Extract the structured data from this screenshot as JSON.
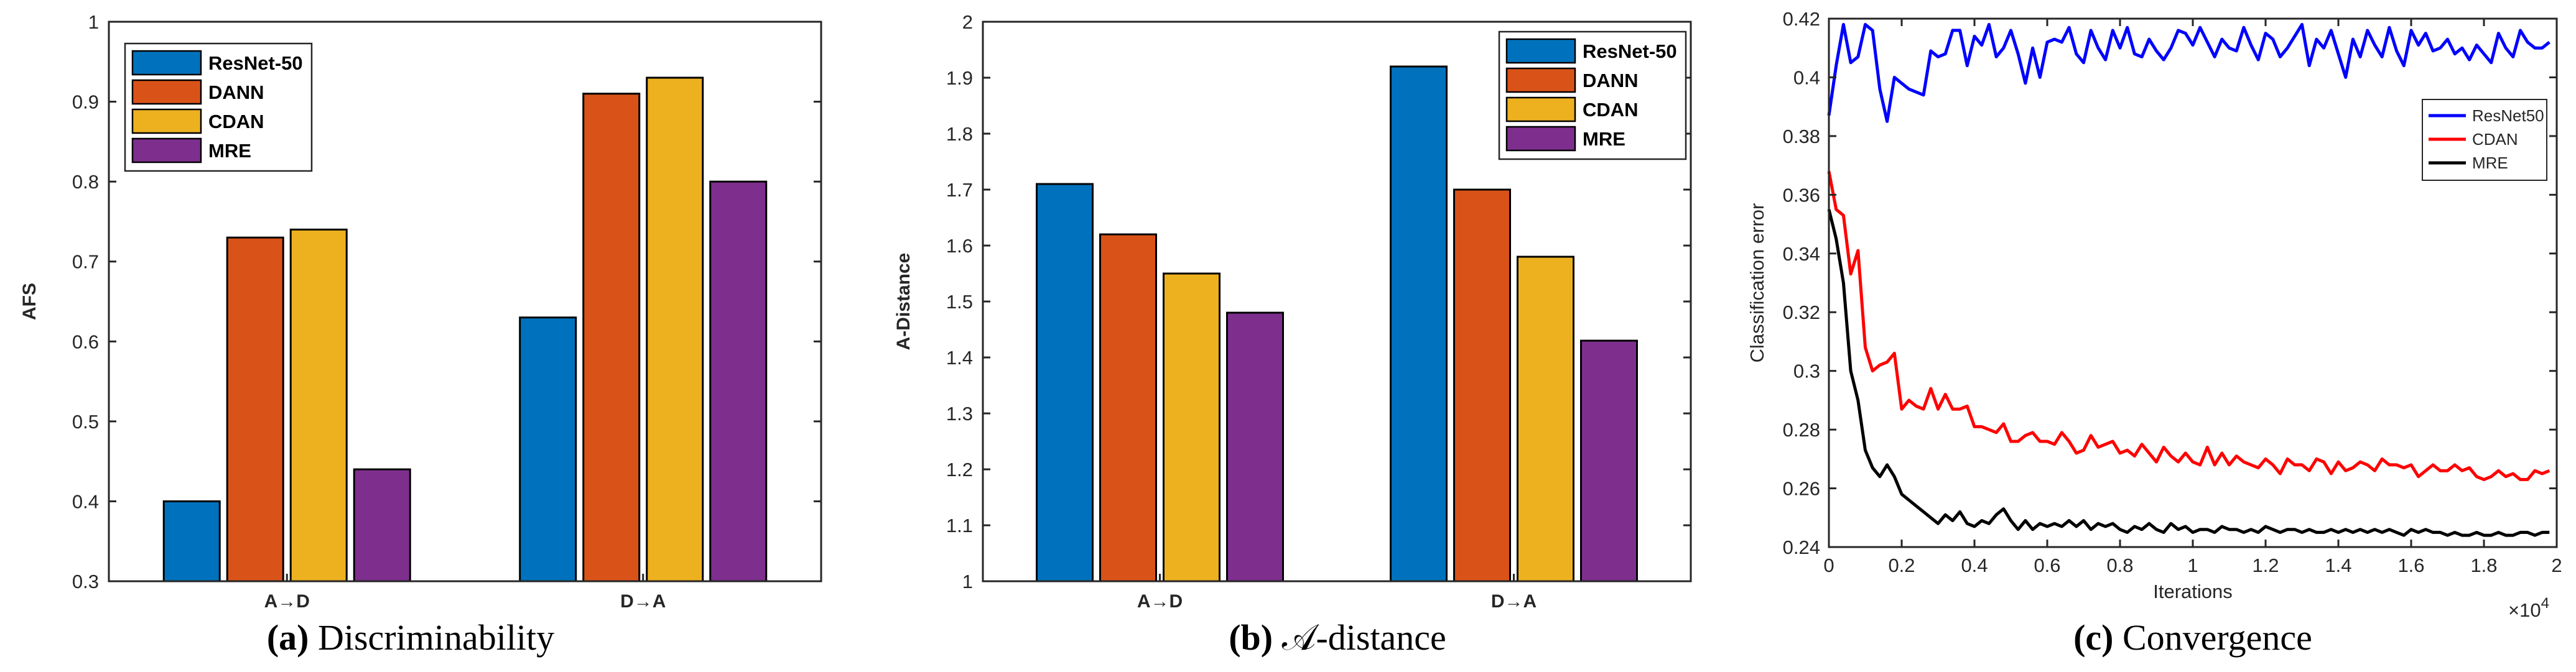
{
  "chart_data": [
    {
      "type": "bar",
      "caption_label": "(a)",
      "caption_text": "Discriminability",
      "categories": [
        "A→D",
        "D→A"
      ],
      "ylabel": "AFS",
      "xlabel": "",
      "ylim": [
        0.3,
        1.0
      ],
      "yticks": [
        "0.3",
        "0.4",
        "0.5",
        "0.6",
        "0.7",
        "0.8",
        "0.9",
        "1"
      ],
      "series": [
        {
          "name": "ResNet-50",
          "color": "#0072BD",
          "values": [
            0.4,
            0.63
          ]
        },
        {
          "name": "DANN",
          "color": "#D95319",
          "values": [
            0.73,
            0.91
          ]
        },
        {
          "name": "CDAN",
          "color": "#EDB120",
          "values": [
            0.74,
            0.93
          ]
        },
        {
          "name": "MRE",
          "color": "#7E2F8E",
          "values": [
            0.44,
            0.8
          ]
        }
      ],
      "legend_position": "top-left",
      "grid": false
    },
    {
      "type": "bar",
      "caption_label": "(b)",
      "caption_text": "𝒜-distance",
      "categories": [
        "A→D",
        "D→A"
      ],
      "ylabel": "A-Distance",
      "xlabel": "",
      "ylim": [
        1.0,
        2.0
      ],
      "yticks": [
        "1",
        "1.1",
        "1.2",
        "1.3",
        "1.4",
        "1.5",
        "1.6",
        "1.7",
        "1.8",
        "1.9",
        "2"
      ],
      "series": [
        {
          "name": "ResNet-50",
          "color": "#0072BD",
          "values": [
            1.71,
            1.92
          ]
        },
        {
          "name": "DANN",
          "color": "#D95319",
          "values": [
            1.62,
            1.7
          ]
        },
        {
          "name": "CDAN",
          "color": "#EDB120",
          "values": [
            1.55,
            1.58
          ]
        },
        {
          "name": "MRE",
          "color": "#7E2F8E",
          "values": [
            1.48,
            1.43
          ]
        }
      ],
      "legend_position": "top-right",
      "grid": false
    },
    {
      "type": "line",
      "caption_label": "(c)",
      "caption_text": "Convergence",
      "xlabel": "Iterations",
      "ylabel": "Classification error",
      "x_multiplier": "×10",
      "x_multiplier_exp": "4",
      "xlim": [
        0,
        2.0
      ],
      "ylim": [
        0.24,
        0.42
      ],
      "xticks": [
        "0",
        "0.2",
        "0.4",
        "0.6",
        "0.8",
        "1",
        "1.2",
        "1.4",
        "1.6",
        "1.8",
        "2"
      ],
      "yticks": [
        "0.24",
        "0.26",
        "0.28",
        "0.3",
        "0.32",
        "0.34",
        "0.36",
        "0.38",
        "0.4",
        "0.42"
      ],
      "legend_position": "top-right",
      "grid": false,
      "series": [
        {
          "name": "ResNet50",
          "color": "#0000FF",
          "x": [
            0.0,
            0.02,
            0.04,
            0.06,
            0.08,
            0.1,
            0.12,
            0.14,
            0.16,
            0.18,
            0.2,
            0.22,
            0.24,
            0.26,
            0.28,
            0.3,
            0.32,
            0.34,
            0.36,
            0.38,
            0.4,
            0.42,
            0.44,
            0.46,
            0.48,
            0.5,
            0.52,
            0.54,
            0.56,
            0.58,
            0.6,
            0.62,
            0.64,
            0.66,
            0.68,
            0.7,
            0.72,
            0.74,
            0.76,
            0.78,
            0.8,
            0.82,
            0.84,
            0.86,
            0.88,
            0.9,
            0.92,
            0.94,
            0.96,
            0.98,
            1.0,
            1.02,
            1.04,
            1.06,
            1.08,
            1.1,
            1.12,
            1.14,
            1.16,
            1.18,
            1.2,
            1.22,
            1.24,
            1.26,
            1.28,
            1.3,
            1.32,
            1.34,
            1.36,
            1.38,
            1.4,
            1.42,
            1.44,
            1.46,
            1.48,
            1.5,
            1.52,
            1.54,
            1.56,
            1.58,
            1.6,
            1.62,
            1.64,
            1.66,
            1.68,
            1.7,
            1.72,
            1.74,
            1.76,
            1.78,
            1.8,
            1.82,
            1.84,
            1.86,
            1.88,
            1.9,
            1.92,
            1.94,
            1.96,
            1.98
          ],
          "y": [
            0.387,
            0.404,
            0.418,
            0.405,
            0.407,
            0.418,
            0.416,
            0.396,
            0.385,
            0.4,
            0.398,
            0.396,
            0.395,
            0.394,
            0.409,
            0.407,
            0.408,
            0.416,
            0.416,
            0.404,
            0.414,
            0.411,
            0.418,
            0.407,
            0.41,
            0.416,
            0.408,
            0.398,
            0.41,
            0.4,
            0.412,
            0.413,
            0.412,
            0.417,
            0.408,
            0.405,
            0.416,
            0.41,
            0.406,
            0.416,
            0.41,
            0.417,
            0.408,
            0.407,
            0.413,
            0.409,
            0.406,
            0.41,
            0.416,
            0.415,
            0.411,
            0.417,
            0.412,
            0.407,
            0.413,
            0.41,
            0.409,
            0.417,
            0.411,
            0.406,
            0.415,
            0.413,
            0.407,
            0.41,
            0.414,
            0.418,
            0.404,
            0.413,
            0.41,
            0.416,
            0.408,
            0.4,
            0.413,
            0.407,
            0.416,
            0.411,
            0.407,
            0.417,
            0.409,
            0.404,
            0.416,
            0.411,
            0.415,
            0.409,
            0.41,
            0.413,
            0.408,
            0.41,
            0.406,
            0.411,
            0.408,
            0.405,
            0.415,
            0.41,
            0.407,
            0.416,
            0.412,
            0.41,
            0.41,
            0.412
          ]
        },
        {
          "name": "CDAN",
          "color": "#FF0000",
          "x": [
            0.0,
            0.02,
            0.04,
            0.06,
            0.08,
            0.1,
            0.12,
            0.14,
            0.16,
            0.18,
            0.2,
            0.22,
            0.24,
            0.26,
            0.28,
            0.3,
            0.32,
            0.34,
            0.36,
            0.38,
            0.4,
            0.42,
            0.44,
            0.46,
            0.48,
            0.5,
            0.52,
            0.54,
            0.56,
            0.58,
            0.6,
            0.62,
            0.64,
            0.66,
            0.68,
            0.7,
            0.72,
            0.74,
            0.76,
            0.78,
            0.8,
            0.82,
            0.84,
            0.86,
            0.88,
            0.9,
            0.92,
            0.94,
            0.96,
            0.98,
            1.0,
            1.02,
            1.04,
            1.06,
            1.08,
            1.1,
            1.12,
            1.14,
            1.16,
            1.18,
            1.2,
            1.22,
            1.24,
            1.26,
            1.28,
            1.3,
            1.32,
            1.34,
            1.36,
            1.38,
            1.4,
            1.42,
            1.44,
            1.46,
            1.48,
            1.5,
            1.52,
            1.54,
            1.56,
            1.58,
            1.6,
            1.62,
            1.64,
            1.66,
            1.68,
            1.7,
            1.72,
            1.74,
            1.76,
            1.78,
            1.8,
            1.82,
            1.84,
            1.86,
            1.88,
            1.9,
            1.92,
            1.94,
            1.96,
            1.98
          ],
          "y": [
            0.368,
            0.355,
            0.353,
            0.333,
            0.341,
            0.308,
            0.3,
            0.302,
            0.303,
            0.306,
            0.287,
            0.29,
            0.288,
            0.287,
            0.294,
            0.287,
            0.292,
            0.287,
            0.287,
            0.288,
            0.281,
            0.281,
            0.28,
            0.279,
            0.282,
            0.276,
            0.276,
            0.278,
            0.279,
            0.276,
            0.276,
            0.275,
            0.279,
            0.276,
            0.272,
            0.273,
            0.278,
            0.274,
            0.275,
            0.276,
            0.272,
            0.273,
            0.271,
            0.275,
            0.272,
            0.269,
            0.274,
            0.271,
            0.269,
            0.272,
            0.269,
            0.268,
            0.274,
            0.268,
            0.272,
            0.268,
            0.271,
            0.269,
            0.268,
            0.267,
            0.27,
            0.268,
            0.265,
            0.27,
            0.268,
            0.268,
            0.266,
            0.27,
            0.269,
            0.265,
            0.269,
            0.266,
            0.267,
            0.269,
            0.268,
            0.266,
            0.27,
            0.268,
            0.268,
            0.267,
            0.268,
            0.264,
            0.266,
            0.268,
            0.266,
            0.266,
            0.268,
            0.266,
            0.267,
            0.264,
            0.263,
            0.264,
            0.266,
            0.264,
            0.265,
            0.263,
            0.263,
            0.266,
            0.265,
            0.266
          ]
        },
        {
          "name": "MRE",
          "color": "#000000",
          "x": [
            0.0,
            0.02,
            0.04,
            0.06,
            0.08,
            0.1,
            0.12,
            0.14,
            0.16,
            0.18,
            0.2,
            0.22,
            0.24,
            0.26,
            0.28,
            0.3,
            0.32,
            0.34,
            0.36,
            0.38,
            0.4,
            0.42,
            0.44,
            0.46,
            0.48,
            0.5,
            0.52,
            0.54,
            0.56,
            0.58,
            0.6,
            0.62,
            0.64,
            0.66,
            0.68,
            0.7,
            0.72,
            0.74,
            0.76,
            0.78,
            0.8,
            0.82,
            0.84,
            0.86,
            0.88,
            0.9,
            0.92,
            0.94,
            0.96,
            0.98,
            1.0,
            1.02,
            1.04,
            1.06,
            1.08,
            1.1,
            1.12,
            1.14,
            1.16,
            1.18,
            1.2,
            1.22,
            1.24,
            1.26,
            1.28,
            1.3,
            1.32,
            1.34,
            1.36,
            1.38,
            1.4,
            1.42,
            1.44,
            1.46,
            1.48,
            1.5,
            1.52,
            1.54,
            1.56,
            1.58,
            1.6,
            1.62,
            1.64,
            1.66,
            1.68,
            1.7,
            1.72,
            1.74,
            1.76,
            1.78,
            1.8,
            1.82,
            1.84,
            1.86,
            1.88,
            1.9,
            1.92,
            1.94,
            1.96,
            1.98
          ],
          "y": [
            0.355,
            0.345,
            0.33,
            0.3,
            0.29,
            0.273,
            0.267,
            0.264,
            0.268,
            0.264,
            0.258,
            0.256,
            0.254,
            0.252,
            0.25,
            0.248,
            0.251,
            0.249,
            0.252,
            0.248,
            0.247,
            0.249,
            0.248,
            0.251,
            0.253,
            0.249,
            0.246,
            0.249,
            0.246,
            0.248,
            0.247,
            0.248,
            0.247,
            0.249,
            0.247,
            0.249,
            0.246,
            0.248,
            0.247,
            0.248,
            0.246,
            0.245,
            0.247,
            0.246,
            0.248,
            0.246,
            0.245,
            0.248,
            0.246,
            0.247,
            0.245,
            0.246,
            0.246,
            0.245,
            0.247,
            0.246,
            0.246,
            0.245,
            0.246,
            0.245,
            0.247,
            0.246,
            0.245,
            0.246,
            0.246,
            0.245,
            0.246,
            0.245,
            0.245,
            0.246,
            0.245,
            0.246,
            0.245,
            0.246,
            0.245,
            0.246,
            0.245,
            0.246,
            0.245,
            0.244,
            0.246,
            0.245,
            0.246,
            0.245,
            0.245,
            0.244,
            0.245,
            0.244,
            0.244,
            0.245,
            0.244,
            0.244,
            0.245,
            0.244,
            0.244,
            0.245,
            0.245,
            0.244,
            0.245,
            0.245
          ]
        }
      ]
    }
  ]
}
